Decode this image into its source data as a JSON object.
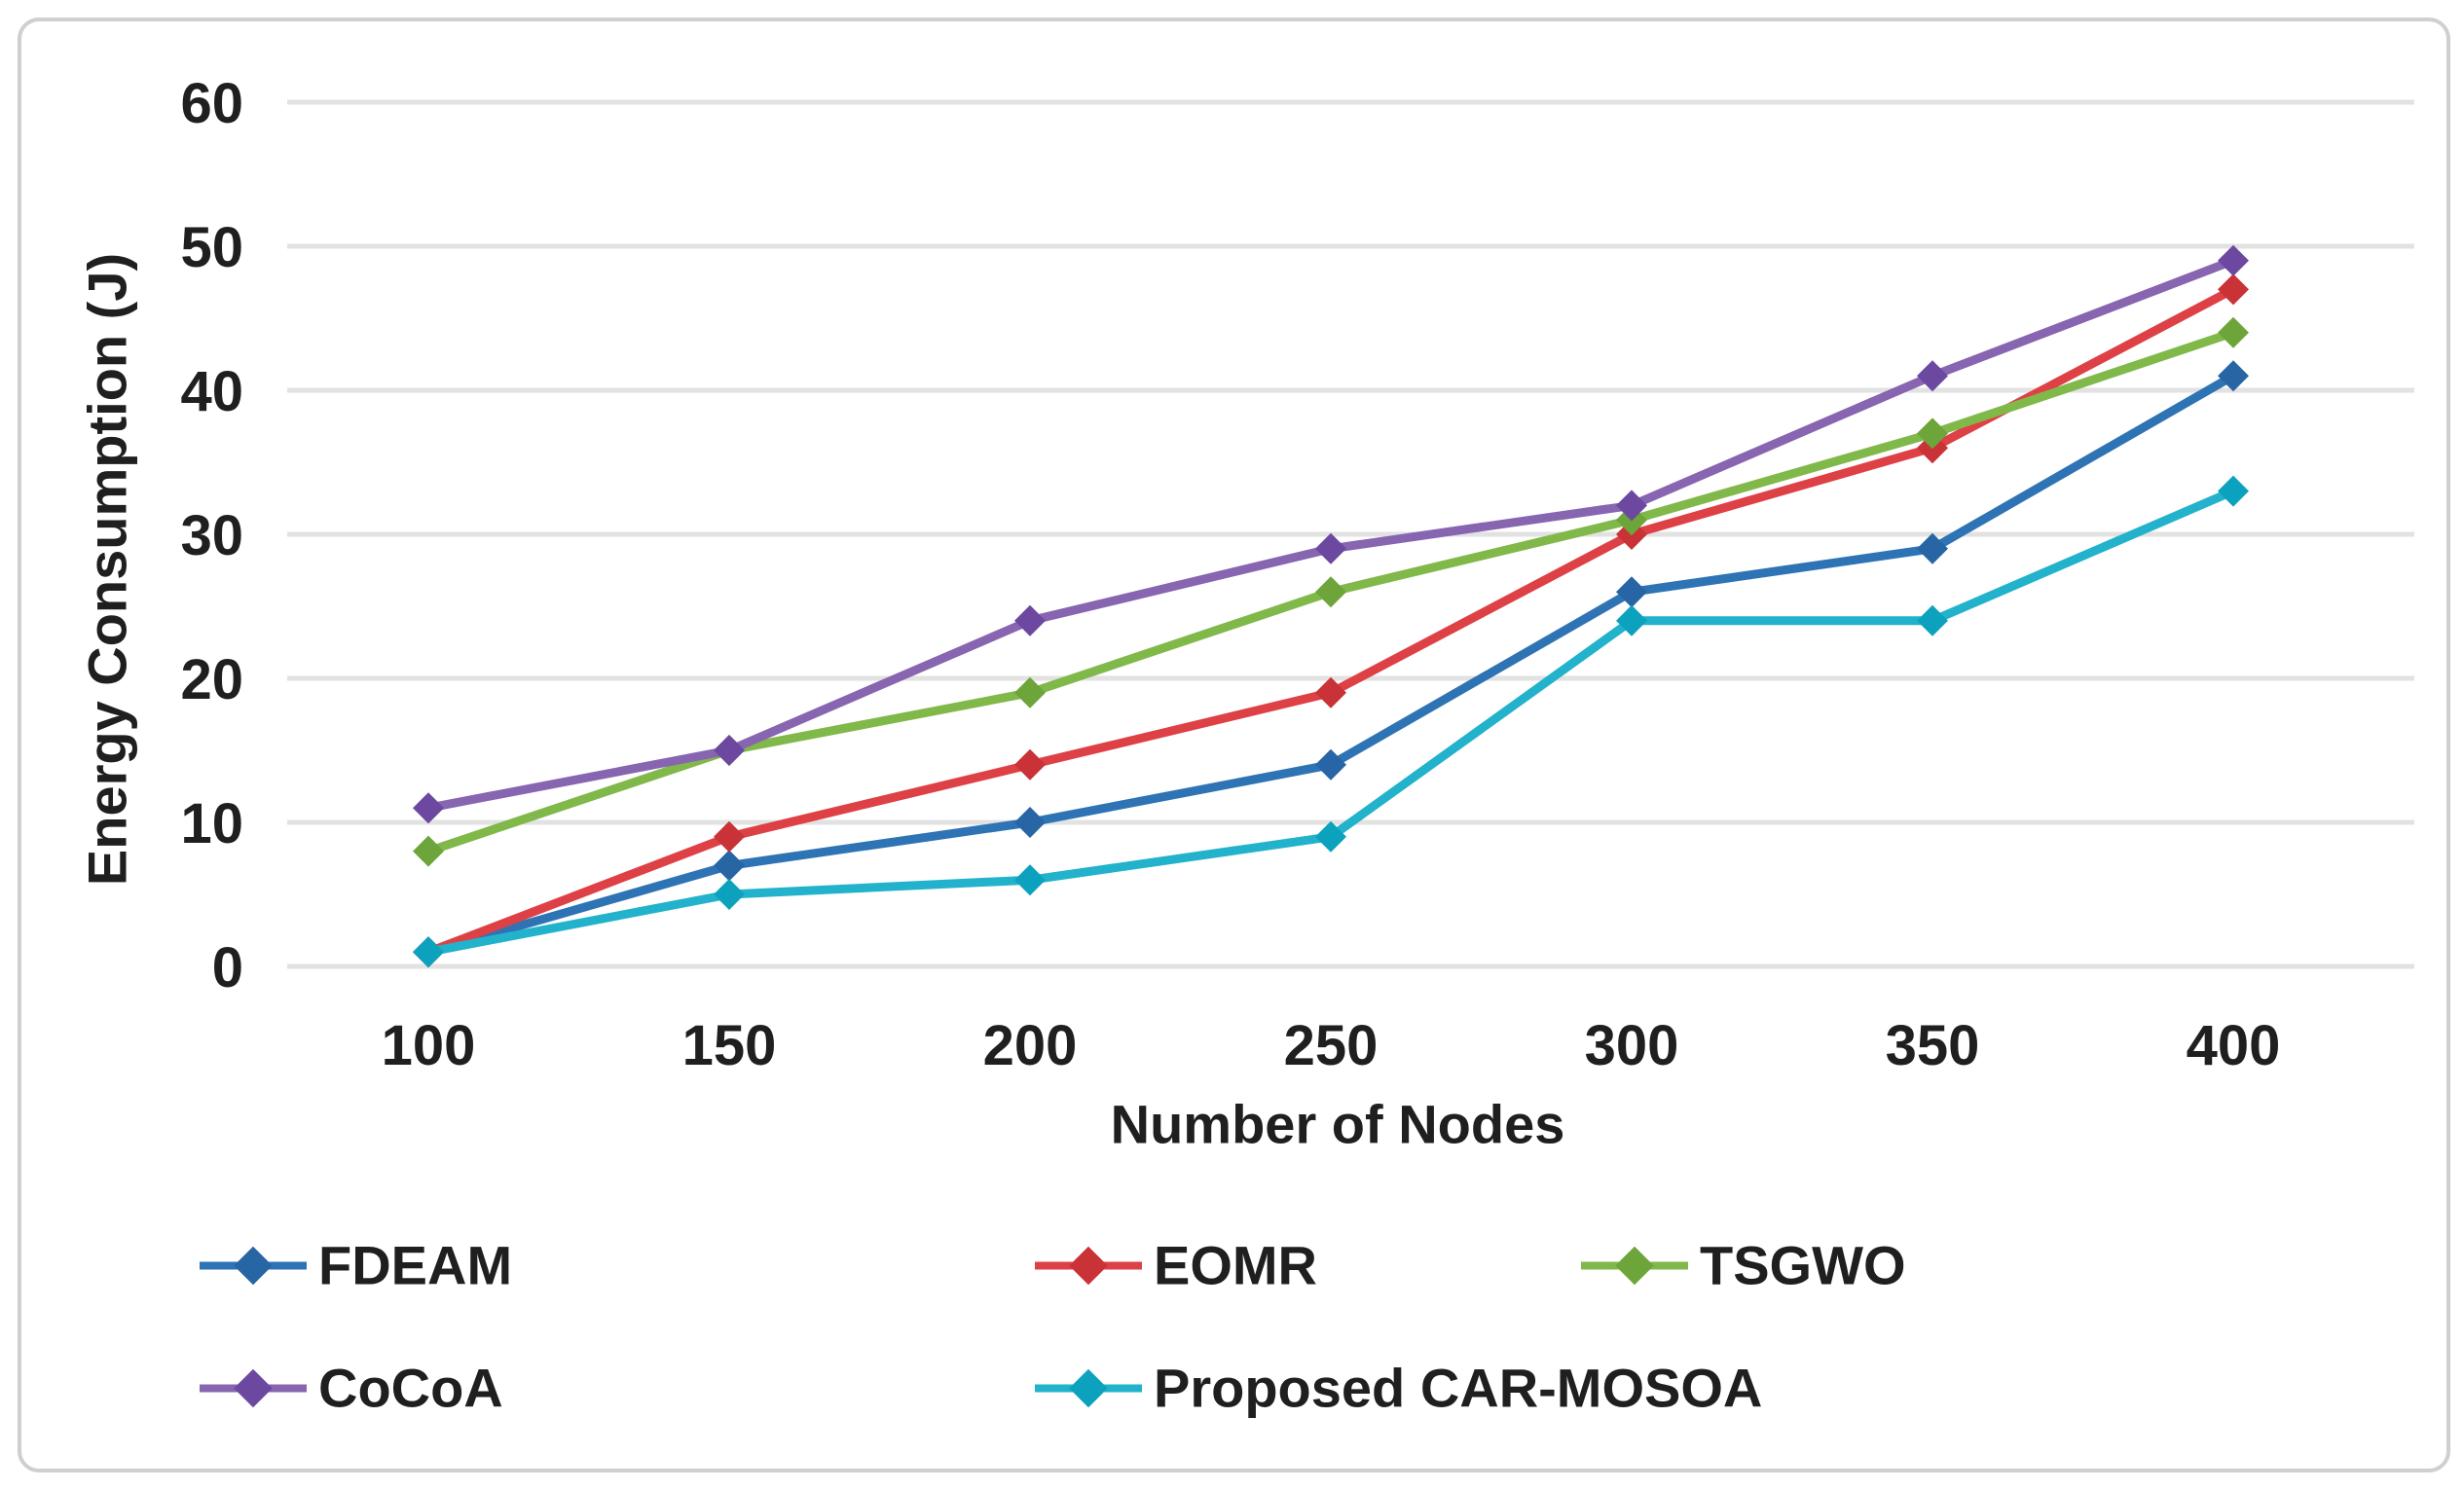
{
  "chart_data": {
    "type": "line",
    "title": "",
    "xlabel": "Number of Nodes",
    "ylabel": "Energy Consumption (J)",
    "categories": [
      100,
      150,
      200,
      250,
      300,
      350,
      400
    ],
    "x_tick_labels": [
      "100",
      "150",
      "200",
      "250",
      "300",
      "350",
      "400"
    ],
    "y_tick_labels": [
      "0",
      "10",
      "20",
      "30",
      "40",
      "50",
      "60"
    ],
    "ylim": [
      0,
      60
    ],
    "ytick_step": 10,
    "grid": "horizontal",
    "gridline_color": "#e2e2e2",
    "legend_position": "bottom",
    "marker": "diamond",
    "series": [
      {
        "name": "FDEAM",
        "color": "#2e74b5",
        "marker_color": "#2765a5",
        "values": [
          1,
          7,
          10,
          14,
          26,
          29,
          41
        ]
      },
      {
        "name": "EOMR",
        "color": "#de4145",
        "marker_color": "#c93236",
        "values": [
          1,
          9,
          14,
          19,
          30,
          36,
          47
        ]
      },
      {
        "name": "TSGWO",
        "color": "#81b84a",
        "marker_color": "#6da53b",
        "values": [
          8,
          15,
          19,
          26,
          31,
          37,
          44
        ]
      },
      {
        "name": "CoCoA",
        "color": "#8765b0",
        "marker_color": "#6c48a0",
        "values": [
          11,
          15,
          24,
          29,
          32,
          41,
          49
        ]
      },
      {
        "name": "Proposed CAR-MOSOA",
        "color": "#22b2cc",
        "marker_color": "#0ca2be",
        "values": [
          1,
          5,
          6,
          9,
          24,
          24,
          33
        ]
      }
    ],
    "text_color": "#1f1f1f",
    "frame_color": "#cfcfcf"
  }
}
